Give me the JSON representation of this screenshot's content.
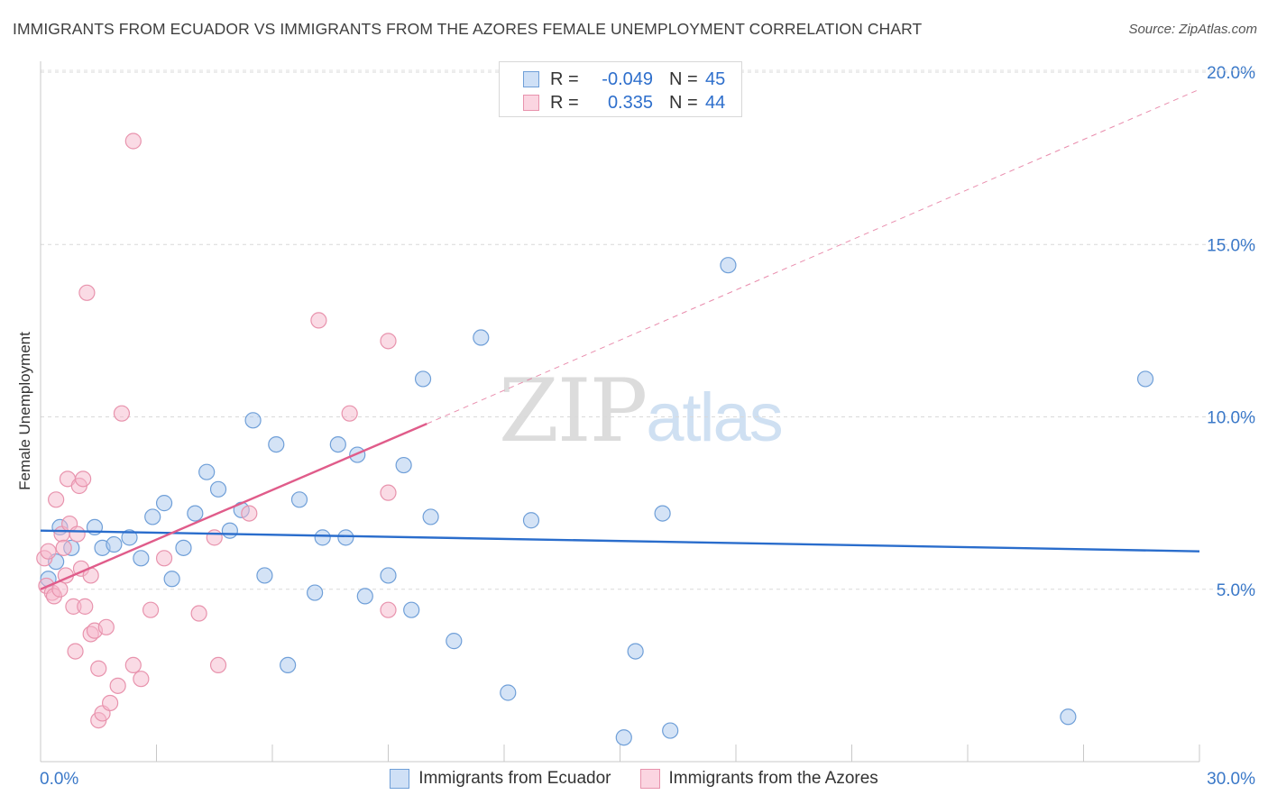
{
  "title": "IMMIGRANTS FROM ECUADOR VS IMMIGRANTS FROM THE AZORES FEMALE UNEMPLOYMENT CORRELATION CHART",
  "source": "Source: ZipAtlas.com",
  "watermark": {
    "zip": "ZIP",
    "atlas": "atlas"
  },
  "colors": {
    "blue_fill": "#aac8ee",
    "blue_stroke": "#6f9fd8",
    "blue_line": "#2a6dcc",
    "pink_fill": "#f5b8cb",
    "pink_stroke": "#e893ad",
    "pink_line": "#e05c8a",
    "tick_text": "#3a78c8"
  },
  "legend_top": {
    "rows": [
      {
        "r_label": "R =",
        "r_value": "-0.049",
        "n_label": "N =",
        "n_value": "45"
      },
      {
        "r_label": "R =",
        "r_value": "0.335",
        "n_label": "N =",
        "n_value": "44"
      }
    ]
  },
  "legend_bottom": {
    "items": [
      "Immigrants from Ecuador",
      "Immigrants from the Azores"
    ]
  },
  "chart_data": {
    "type": "scatter",
    "title": "IMMIGRANTS FROM ECUADOR VS IMMIGRANTS FROM THE AZORES FEMALE UNEMPLOYMENT CORRELATION CHART",
    "xlabel": "",
    "ylabel": "Female Unemployment",
    "xlim": [
      0,
      30
    ],
    "ylim": [
      0,
      20
    ],
    "x_tick_labels": [
      "0.0%",
      "30.0%"
    ],
    "y_ticks": [
      5,
      10,
      15,
      20
    ],
    "y_tick_labels": [
      "5.0%",
      "10.0%",
      "15.0%",
      "20.0%"
    ],
    "grid": true,
    "series": [
      {
        "name": "Immigrants from Ecuador",
        "color": "blue",
        "r": -0.049,
        "n": 45,
        "trend": {
          "x": [
            0,
            30
          ],
          "y": [
            6.7,
            6.1
          ],
          "style": "solid"
        },
        "points": [
          [
            0.2,
            5.3
          ],
          [
            0.4,
            5.8
          ],
          [
            0.5,
            6.8
          ],
          [
            0.8,
            6.2
          ],
          [
            1.4,
            6.8
          ],
          [
            1.6,
            6.2
          ],
          [
            1.9,
            6.3
          ],
          [
            2.3,
            6.5
          ],
          [
            2.6,
            5.9
          ],
          [
            2.9,
            7.1
          ],
          [
            3.2,
            7.5
          ],
          [
            3.4,
            5.3
          ],
          [
            3.7,
            6.2
          ],
          [
            4.0,
            7.2
          ],
          [
            4.3,
            8.4
          ],
          [
            4.6,
            7.9
          ],
          [
            4.9,
            6.7
          ],
          [
            5.2,
            7.3
          ],
          [
            5.5,
            9.9
          ],
          [
            5.8,
            5.4
          ],
          [
            6.1,
            9.2
          ],
          [
            6.4,
            2.8
          ],
          [
            6.7,
            7.6
          ],
          [
            7.1,
            4.9
          ],
          [
            7.3,
            6.5
          ],
          [
            7.7,
            9.2
          ],
          [
            7.9,
            6.5
          ],
          [
            8.2,
            8.9
          ],
          [
            8.4,
            4.8
          ],
          [
            9.0,
            5.4
          ],
          [
            9.4,
            8.6
          ],
          [
            9.6,
            4.4
          ],
          [
            9.9,
            11.1
          ],
          [
            10.1,
            7.1
          ],
          [
            10.7,
            3.5
          ],
          [
            11.4,
            12.3
          ],
          [
            12.1,
            2.0
          ],
          [
            12.7,
            7.0
          ],
          [
            15.1,
            0.7
          ],
          [
            15.4,
            3.2
          ],
          [
            16.1,
            7.2
          ],
          [
            16.3,
            0.9
          ],
          [
            17.8,
            14.4
          ],
          [
            26.6,
            1.3
          ],
          [
            28.6,
            11.1
          ]
        ]
      },
      {
        "name": "Immigrants from the Azores",
        "color": "pink",
        "r": 0.335,
        "n": 44,
        "trend": {
          "x": [
            0,
            10
          ],
          "y": [
            5.0,
            9.8
          ],
          "style": "solid",
          "dashed_extension": {
            "x": [
              10,
              30
            ],
            "y": [
              9.8,
              19.5
            ]
          }
        },
        "points": [
          [
            0.1,
            5.9
          ],
          [
            0.15,
            5.1
          ],
          [
            0.2,
            6.1
          ],
          [
            0.3,
            4.9
          ],
          [
            0.35,
            4.8
          ],
          [
            0.4,
            7.6
          ],
          [
            0.5,
            5.0
          ],
          [
            0.55,
            6.6
          ],
          [
            0.6,
            6.2
          ],
          [
            0.65,
            5.4
          ],
          [
            0.7,
            8.2
          ],
          [
            0.75,
            6.9
          ],
          [
            0.85,
            4.5
          ],
          [
            0.9,
            3.2
          ],
          [
            0.95,
            6.6
          ],
          [
            1.0,
            8.0
          ],
          [
            1.05,
            5.6
          ],
          [
            1.1,
            8.2
          ],
          [
            1.15,
            4.5
          ],
          [
            1.2,
            13.6
          ],
          [
            1.3,
            5.4
          ],
          [
            1.3,
            3.7
          ],
          [
            1.4,
            3.8
          ],
          [
            1.5,
            1.2
          ],
          [
            1.5,
            2.7
          ],
          [
            1.6,
            1.4
          ],
          [
            1.7,
            3.9
          ],
          [
            1.8,
            1.7
          ],
          [
            2.0,
            2.2
          ],
          [
            2.1,
            10.1
          ],
          [
            2.4,
            18.0
          ],
          [
            2.4,
            2.8
          ],
          [
            2.6,
            2.4
          ],
          [
            2.85,
            4.4
          ],
          [
            3.2,
            5.9
          ],
          [
            4.1,
            4.3
          ],
          [
            4.5,
            6.5
          ],
          [
            4.6,
            2.8
          ],
          [
            5.4,
            7.2
          ],
          [
            7.2,
            12.8
          ],
          [
            8.0,
            10.1
          ],
          [
            9.0,
            12.2
          ],
          [
            9.0,
            7.8
          ],
          [
            9.0,
            4.4
          ]
        ]
      }
    ]
  }
}
